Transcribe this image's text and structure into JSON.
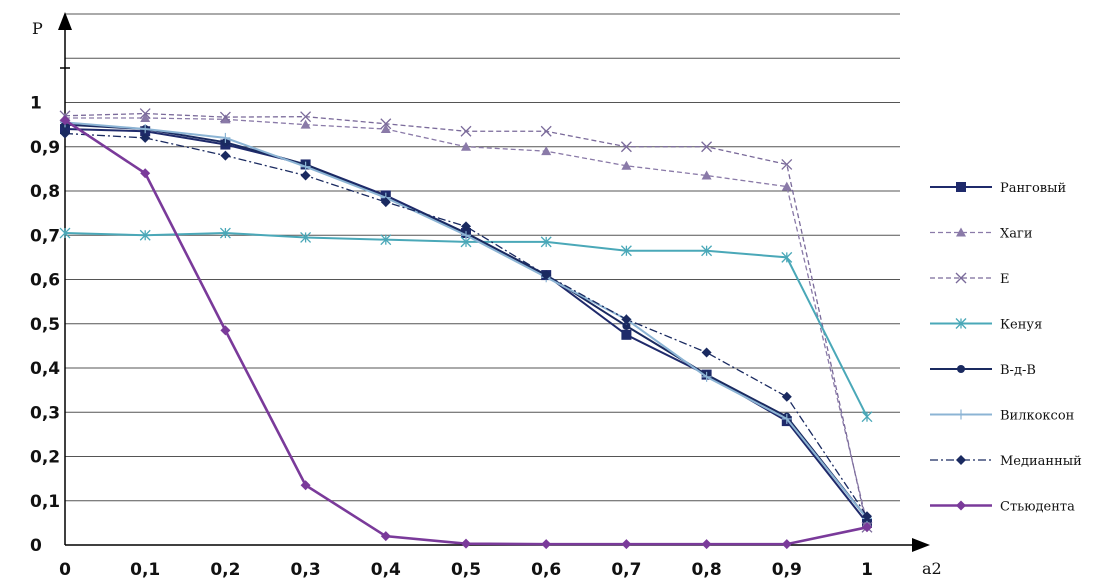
{
  "chart_data": {
    "type": "line",
    "xlabel": "a2",
    "ylabel": "P",
    "x": [
      0,
      0.1,
      0.2,
      0.3,
      0.4,
      0.5,
      0.6,
      0.7,
      0.8,
      0.9,
      1
    ],
    "x_tick_labels": [
      "0",
      "0,1",
      "0,2",
      "0,3",
      "0,4",
      "0,5",
      "0,6",
      "0,7",
      "0,8",
      "0,9",
      "1"
    ],
    "y_tick_labels": [
      "0",
      "0,1",
      "0,2",
      "0,3",
      "0,4",
      "0,5",
      "0,6",
      "0,7",
      "0,8",
      "0,9",
      "1"
    ],
    "y_ticks": [
      0,
      0.1,
      0.2,
      0.3,
      0.4,
      0.5,
      0.6,
      0.7,
      0.8,
      0.9,
      1
    ],
    "ylim": [
      0,
      1.2
    ],
    "xlim": [
      0,
      1
    ],
    "grid": true,
    "legend_position": "right",
    "series": [
      {
        "name": "Ранговый",
        "color": "#1f2a6b",
        "dash": "solid",
        "marker": "square",
        "values": [
          0.94,
          0.935,
          0.905,
          0.86,
          0.79,
          0.705,
          0.61,
          0.475,
          0.385,
          0.28,
          0.05
        ]
      },
      {
        "name": "Хаги",
        "color": "#8a7aa8",
        "dash": "dashed",
        "marker": "triangle",
        "values": [
          0.965,
          0.965,
          0.962,
          0.95,
          0.94,
          0.9,
          0.89,
          0.857,
          0.835,
          0.81,
          0.05
        ]
      },
      {
        "name": "E",
        "color": "#7a6a9a",
        "dash": "dashed",
        "marker": "x",
        "values": [
          0.97,
          0.975,
          0.967,
          0.968,
          0.952,
          0.935,
          0.935,
          0.9,
          0.9,
          0.86,
          0.04
        ]
      },
      {
        "name": "Кенуя",
        "color": "#4aa8b8",
        "dash": "solid",
        "marker": "asterisk",
        "values": [
          0.705,
          0.7,
          0.705,
          0.695,
          0.69,
          0.685,
          0.685,
          0.665,
          0.665,
          0.65,
          0.29
        ]
      },
      {
        "name": "В-д-В",
        "color": "#1a2a60",
        "dash": "solid",
        "marker": "dot",
        "values": [
          0.95,
          0.94,
          0.91,
          0.86,
          0.785,
          0.705,
          0.61,
          0.495,
          0.385,
          0.29,
          0.06
        ]
      },
      {
        "name": "Вилкоксон",
        "color": "#8cb4d4",
        "dash": "solid",
        "marker": "plus",
        "values": [
          0.955,
          0.94,
          0.92,
          0.855,
          0.785,
          0.7,
          0.605,
          0.51,
          0.38,
          0.285,
          0.06
        ]
      },
      {
        "name": "Медианный",
        "color": "#1a2a60",
        "dash": "dashdot",
        "marker": "diamond",
        "values": [
          0.93,
          0.92,
          0.88,
          0.835,
          0.775,
          0.72,
          0.61,
          0.51,
          0.435,
          0.335,
          0.065
        ]
      },
      {
        "name": "Стьюдента",
        "color": "#7a3a9a",
        "dash": "solid",
        "marker": "diamond",
        "values": [
          0.96,
          0.84,
          0.485,
          0.135,
          0.02,
          0.003,
          0.002,
          0.002,
          0.002,
          0.002,
          0.04
        ]
      }
    ]
  }
}
